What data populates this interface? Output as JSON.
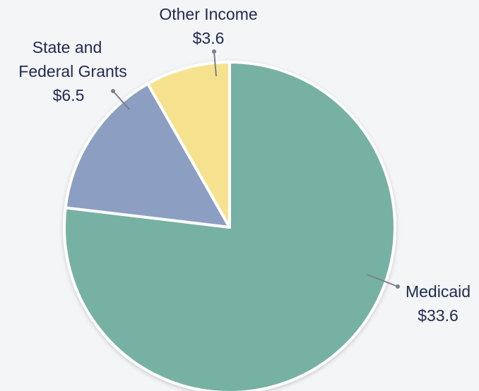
{
  "chart_data": {
    "type": "pie",
    "title": "",
    "slices": [
      {
        "name": "Medicaid",
        "label_lines": [
          "Medicaid"
        ],
        "value_label": "$33.6",
        "value": 33.6,
        "color": "#77b1a4"
      },
      {
        "name": "State and Federal Grants",
        "label_lines": [
          "State and",
          "Federal Grants"
        ],
        "value_label": "$6.5",
        "value": 6.5,
        "color": "#8c9fc2"
      },
      {
        "name": "Other Income",
        "label_lines": [
          "Other Income"
        ],
        "value_label": "$3.6",
        "value": 3.6,
        "color": "#f6e28e"
      }
    ],
    "start": "12 o'clock",
    "direction": "clockwise",
    "legend": "none",
    "labels": "outside with leader lines"
  }
}
